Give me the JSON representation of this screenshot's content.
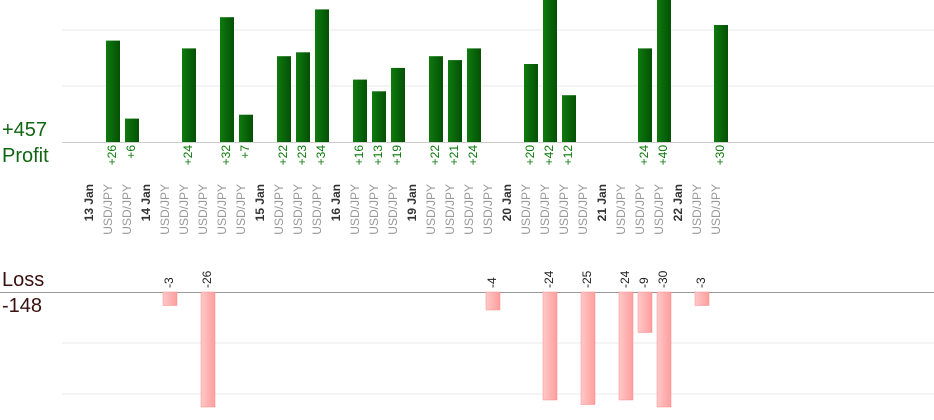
{
  "summary": {
    "profit_total": "+457",
    "profit_label": "Profit",
    "loss_label": "Loss",
    "loss_total": "-148"
  },
  "colors": {
    "profit": "#0a6b0a",
    "profit_text": "#0a7a0a",
    "loss": "#ffb3b3",
    "loss_text": "#222222",
    "profit_label": "#116611",
    "loss_label": "#3a1010",
    "grid": "#e8e8e8",
    "baseline": "#999999",
    "date_text": "#333333",
    "pair_text": "#999999"
  },
  "chart_data": {
    "type": "bar",
    "title": "",
    "xlabel": "",
    "ylabel": "",
    "days": [
      {
        "date": "13 Jan",
        "trades": [
          {
            "pair": "USD/JPY",
            "profit": 26
          },
          {
            "pair": "USD/JPY",
            "profit": 6
          }
        ]
      },
      {
        "date": "14 Jan",
        "trades": [
          {
            "pair": "USD/JPY",
            "loss": -3
          },
          {
            "pair": "USD/JPY",
            "profit": 24
          },
          {
            "pair": "USD/JPY",
            "loss": -26
          },
          {
            "pair": "USD/JPY",
            "profit": 32
          },
          {
            "pair": "USD/JPY",
            "profit": 7
          }
        ]
      },
      {
        "date": "15 Jan",
        "trades": [
          {
            "pair": "USD/JPY",
            "profit": 22
          },
          {
            "pair": "USD/JPY",
            "profit": 23
          },
          {
            "pair": "USD/JPY",
            "profit": 34
          }
        ]
      },
      {
        "date": "16 Jan",
        "trades": [
          {
            "pair": "USD/JPY",
            "profit": 16
          },
          {
            "pair": "USD/JPY",
            "profit": 13
          },
          {
            "pair": "USD/JPY",
            "profit": 19
          }
        ]
      },
      {
        "date": "19 Jan",
        "trades": [
          {
            "pair": "USD/JPY",
            "profit": 22
          },
          {
            "pair": "USD/JPY",
            "profit": 21
          },
          {
            "pair": "USD/JPY",
            "profit": 24
          },
          {
            "pair": "USD/JPY",
            "loss": -4
          }
        ]
      },
      {
        "date": "20 Jan",
        "trades": [
          {
            "pair": "USD/JPY",
            "profit": 20
          },
          {
            "pair": "USD/JPY",
            "profit": 42,
            "loss": -24
          },
          {
            "pair": "USD/JPY",
            "profit": 12
          },
          {
            "pair": "USD/JPY",
            "loss": -25
          }
        ]
      },
      {
        "date": "21 Jan",
        "trades": [
          {
            "pair": "USD/JPY",
            "loss": -24
          },
          {
            "pair": "USD/JPY",
            "profit": 24,
            "loss": -9
          },
          {
            "pair": "USD/JPY",
            "profit": 40,
            "loss": -30
          }
        ]
      },
      {
        "date": "22 Jan",
        "trades": [
          {
            "pair": "USD/JPY",
            "loss": -3
          },
          {
            "pair": "USD/JPY",
            "profit": 30
          }
        ]
      }
    ]
  }
}
